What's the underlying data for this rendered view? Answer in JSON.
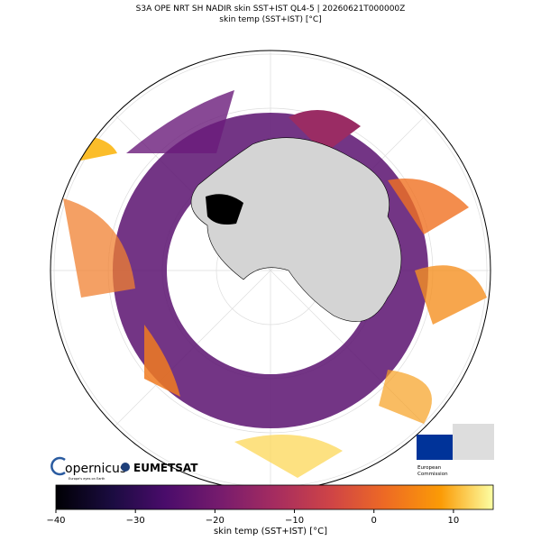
{
  "map": {
    "title": "S3A OPE NRT SH NADIR  skin SST+IST  QL4-5  |  20260621T000000Z",
    "subtitle": "skin temp (SST+IST)  [°C]",
    "colorbar": {
      "label": "skin temp (SST+IST)  [°C]",
      "lim": [
        -40,
        15
      ],
      "ticks": [
        {
          "value": -40,
          "label": "−40"
        },
        {
          "value": -30,
          "label": "−30"
        },
        {
          "value": -20,
          "label": "−20"
        },
        {
          "value": -10,
          "label": "−10"
        },
        0,
        10
      ]
    },
    "logos": {
      "copernicus": "opernicus",
      "copernicus_tagline": "Europe's eyes on Earth",
      "eumetsat": "EUMETSAT",
      "commission_line1": "European",
      "commission_line2": "Commission"
    }
  }
}
